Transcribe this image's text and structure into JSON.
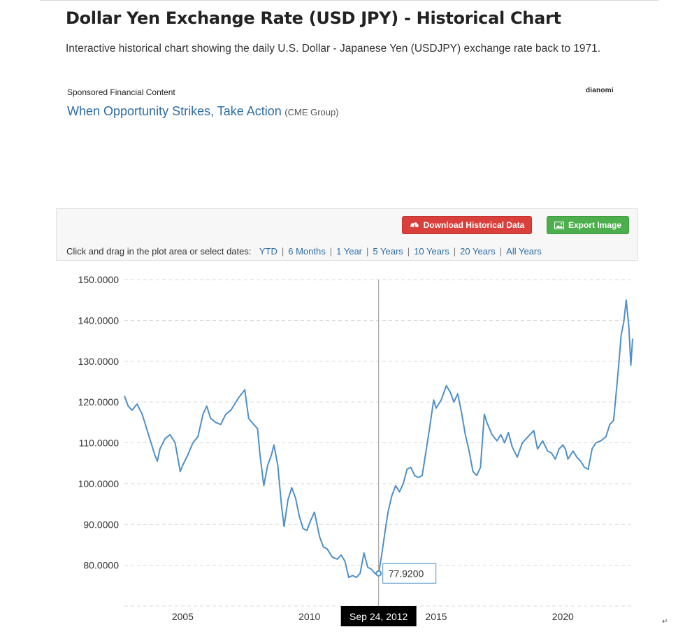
{
  "page": {
    "title": "Dollar Yen Exchange Rate (USD JPY) - Historical Chart",
    "subtitle": "Interactive historical chart showing the daily U.S. Dollar - Japanese Yen (USDJPY) exchange rate back to 1971."
  },
  "sponsored": {
    "label": "Sponsored Financial Content",
    "logo": "dianomi",
    "link_text": "When Opportunity Strikes, Take Action",
    "source": "(CME Group)"
  },
  "toolbar": {
    "download_label": "Download Historical Data",
    "download_icon": "cloud-download-icon",
    "export_label": "Export Image",
    "export_icon": "image-icon",
    "download_color": "#d9403b",
    "export_color": "#4cae4c",
    "date_prompt": "Click and drag in the plot area or select dates:",
    "ranges": [
      "YTD",
      "6 Months",
      "1 Year",
      "5 Years",
      "10 Years",
      "20 Years",
      "All Years"
    ]
  },
  "chart_data": {
    "type": "line",
    "title": "",
    "xlabel": "",
    "ylabel": "",
    "x_range": [
      2002.7,
      2022.75
    ],
    "ylim": [
      70,
      150
    ],
    "y_ticks": [
      80,
      90,
      100,
      110,
      120,
      130,
      140,
      150
    ],
    "y_tick_labels": [
      "80.0000",
      "90.0000",
      "100.0000",
      "110.0000",
      "120.0000",
      "130.0000",
      "140.0000",
      "150.0000"
    ],
    "x_ticks": [
      2005,
      2010,
      2015,
      2020
    ],
    "x_tick_labels": [
      "2005",
      "2010",
      "2015",
      "2020"
    ],
    "grid": true,
    "line_color": "#4f90c8",
    "series": [
      {
        "x": [
          2002.7,
          2002.85,
          2003.0,
          2003.2,
          2003.4,
          2003.55,
          2003.75,
          2003.9,
          2004.0,
          2004.1,
          2004.3,
          2004.5,
          2004.7,
          2004.9,
          2005.0,
          2005.2,
          2005.4,
          2005.6,
          2005.8,
          2005.95,
          2006.1,
          2006.3,
          2006.5,
          2006.7,
          2006.9,
          2007.0,
          2007.2,
          2007.45,
          2007.6,
          2007.8,
          2007.95,
          2008.05,
          2008.2,
          2008.35,
          2008.5,
          2008.6,
          2008.75,
          2008.9,
          2009.0,
          2009.15,
          2009.3,
          2009.45,
          2009.6,
          2009.75,
          2009.9,
          2010.05,
          2010.2,
          2010.4,
          2010.55,
          2010.7,
          2010.9,
          2011.1,
          2011.25,
          2011.4,
          2011.55,
          2011.7,
          2011.85,
          2012.0,
          2012.15,
          2012.3,
          2012.45,
          2012.6,
          2012.73,
          2012.85,
          2013.0,
          2013.1,
          2013.25,
          2013.4,
          2013.55,
          2013.7,
          2013.85,
          2014.0,
          2014.15,
          2014.3,
          2014.45,
          2014.6,
          2014.75,
          2014.9,
          2015.0,
          2015.2,
          2015.4,
          2015.55,
          2015.7,
          2015.85,
          2016.0,
          2016.15,
          2016.3,
          2016.45,
          2016.6,
          2016.75,
          2016.9,
          2017.0,
          2017.2,
          2017.4,
          2017.55,
          2017.7,
          2017.85,
          2018.0,
          2018.2,
          2018.4,
          2018.55,
          2018.7,
          2018.85,
          2019.0,
          2019.2,
          2019.4,
          2019.55,
          2019.7,
          2019.85,
          2020.0,
          2020.1,
          2020.2,
          2020.4,
          2020.55,
          2020.7,
          2020.85,
          2021.0,
          2021.15,
          2021.3,
          2021.5,
          2021.7,
          2021.85,
          2022.0,
          2022.1,
          2022.2,
          2022.3,
          2022.4,
          2022.5,
          2022.6,
          2022.68,
          2022.75
        ],
        "y": [
          121.5,
          119.0,
          118.0,
          119.5,
          117.0,
          114.0,
          110.0,
          107.0,
          105.5,
          108.5,
          111.0,
          112.0,
          110.0,
          103.0,
          104.5,
          107.0,
          110.0,
          111.5,
          117.0,
          119.0,
          116.0,
          115.0,
          114.5,
          117.0,
          118.0,
          119.0,
          121.0,
          123.0,
          116.0,
          114.5,
          113.5,
          107.0,
          99.5,
          104.5,
          107.0,
          109.5,
          104.5,
          94.5,
          89.5,
          96.0,
          99.0,
          96.5,
          92.0,
          89.0,
          88.5,
          91.0,
          93.0,
          87.0,
          84.5,
          84.0,
          82.0,
          81.5,
          82.5,
          81.0,
          77.0,
          77.5,
          77.0,
          78.0,
          83.0,
          79.5,
          79.0,
          77.9,
          78.0,
          82.5,
          89.0,
          93.0,
          97.0,
          99.5,
          98.0,
          100.0,
          103.5,
          104.0,
          102.0,
          101.5,
          102.0,
          108.0,
          114.0,
          120.5,
          118.5,
          120.5,
          124.0,
          122.5,
          120.0,
          122.0,
          117.5,
          112.0,
          108.0,
          103.0,
          102.0,
          104.0,
          117.0,
          115.0,
          112.0,
          110.5,
          112.0,
          110.0,
          112.5,
          109.0,
          106.5,
          110.0,
          111.0,
          112.0,
          113.0,
          108.5,
          110.5,
          108.0,
          107.5,
          106.0,
          108.5,
          109.5,
          108.5,
          106.0,
          108.0,
          106.5,
          105.5,
          104.0,
          103.5,
          108.5,
          110.0,
          110.5,
          111.5,
          114.5,
          115.5,
          122.0,
          129.0,
          136.5,
          139.5,
          145.0,
          138.5,
          129.0,
          135.5
        ]
      }
    ],
    "tooltip": {
      "x": 2012.73,
      "value_label": "77.9200",
      "date_label": "Sep 24, 2012"
    }
  }
}
